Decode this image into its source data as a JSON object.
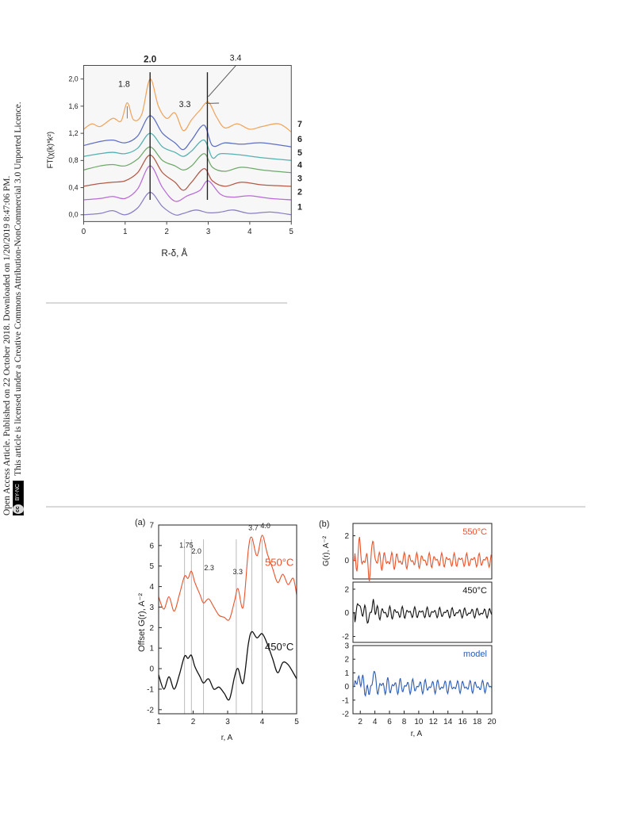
{
  "side_note": {
    "line1": "Open Access Article. Published on 22 October 2018. Downloaded on 1/20/2019 8:47:06 PM.",
    "line2": "This article is licensed under a Creative Commons Attribution-NonCommercial 3.0 Unported Licence.",
    "badge_cc": "cc",
    "badge_text": "BY-NC"
  },
  "chart_data": [
    {
      "type": "line",
      "xlabel": "R-δ, Å",
      "ylabel": "FT(χ(k)*k²)",
      "xlim": [
        0,
        5
      ],
      "ylim": [
        -0.1,
        2.2
      ],
      "x_ticks": [
        "0",
        "1",
        "2",
        "3",
        "4",
        "5"
      ],
      "y_ticks": [
        "0,0",
        "0,4",
        "0,8",
        "1,2",
        "1,6",
        "2,0"
      ],
      "annotations": [
        "1.8",
        "2.0",
        "3.3",
        "3.4"
      ],
      "vertical_lines_at": [
        1.6,
        2.98
      ],
      "series": [
        {
          "name": "1",
          "color": "#8a7fc4",
          "offset": 0.0,
          "x": [
            0,
            0.4,
            0.7,
            1.0,
            1.3,
            1.6,
            1.9,
            2.2,
            2.4,
            2.7,
            3.0,
            3.3,
            3.6,
            4.0,
            4.5,
            5.0
          ],
          "y": [
            0.0,
            0.02,
            0.06,
            0.0,
            0.1,
            0.33,
            0.12,
            0.0,
            0.02,
            0.07,
            0.03,
            0.04,
            0.07,
            0.02,
            0.04,
            0.0
          ]
        },
        {
          "name": "2",
          "color": "#b86bd6",
          "offset": 0.22,
          "x": [
            0,
            0.4,
            0.7,
            1.0,
            1.3,
            1.6,
            1.9,
            2.2,
            2.5,
            2.8,
            3.0,
            3.3,
            3.6,
            4.0,
            4.5,
            5.0
          ],
          "y": [
            0.22,
            0.24,
            0.27,
            0.24,
            0.38,
            0.72,
            0.4,
            0.2,
            0.28,
            0.36,
            0.5,
            0.3,
            0.26,
            0.28,
            0.24,
            0.22
          ]
        },
        {
          "name": "3",
          "color": "#b35a48",
          "offset": 0.42,
          "x": [
            0,
            0.4,
            0.7,
            1.0,
            1.3,
            1.6,
            1.9,
            2.2,
            2.4,
            2.6,
            2.9,
            3.1,
            3.4,
            3.8,
            4.3,
            5.0
          ],
          "y": [
            0.42,
            0.46,
            0.48,
            0.5,
            0.62,
            0.88,
            0.62,
            0.48,
            0.36,
            0.48,
            0.68,
            0.5,
            0.42,
            0.48,
            0.44,
            0.42
          ]
        },
        {
          "name": "4",
          "color": "#6fa86a",
          "offset": 0.62,
          "x": [
            0,
            0.4,
            0.7,
            1.0,
            1.3,
            1.6,
            1.9,
            2.2,
            2.4,
            2.6,
            2.9,
            3.1,
            3.4,
            3.8,
            4.3,
            5.0
          ],
          "y": [
            0.66,
            0.72,
            0.74,
            0.72,
            0.82,
            1.0,
            0.8,
            0.72,
            0.66,
            0.72,
            0.9,
            0.7,
            0.64,
            0.7,
            0.66,
            0.62
          ]
        },
        {
          "name": "5",
          "color": "#54b0b0",
          "offset": 0.82,
          "x": [
            0,
            0.4,
            0.7,
            1.0,
            1.3,
            1.6,
            1.9,
            2.2,
            2.4,
            2.6,
            2.9,
            3.1,
            3.3,
            3.8,
            4.3,
            5.0
          ],
          "y": [
            0.86,
            0.9,
            0.92,
            0.9,
            0.98,
            1.2,
            1.0,
            0.92,
            0.86,
            0.94,
            1.1,
            0.84,
            0.9,
            0.88,
            0.84,
            0.8
          ]
        },
        {
          "name": "6",
          "color": "#5d6fc4",
          "offset": 1.02,
          "x": [
            0,
            0.4,
            0.7,
            1.0,
            1.3,
            1.6,
            1.9,
            2.2,
            2.4,
            2.6,
            2.9,
            3.1,
            3.4,
            3.8,
            4.3,
            5.0
          ],
          "y": [
            1.02,
            1.08,
            1.1,
            1.06,
            1.16,
            1.46,
            1.2,
            1.06,
            0.96,
            1.1,
            1.32,
            1.02,
            1.06,
            1.04,
            1.06,
            1.0
          ]
        },
        {
          "name": "7",
          "color": "#f0a55e",
          "offset": 1.22,
          "x": [
            0,
            0.2,
            0.4,
            0.7,
            0.9,
            1.05,
            1.2,
            1.4,
            1.6,
            1.8,
            2.0,
            2.2,
            2.4,
            2.6,
            2.8,
            3.0,
            3.2,
            3.4,
            3.7,
            4.0,
            4.3,
            4.7,
            5.0
          ],
          "y": [
            1.26,
            1.34,
            1.3,
            1.42,
            1.38,
            1.65,
            1.4,
            1.48,
            2.0,
            1.6,
            1.42,
            1.5,
            1.24,
            1.4,
            1.54,
            1.66,
            1.44,
            1.28,
            1.34,
            1.26,
            1.3,
            1.34,
            1.22
          ]
        }
      ]
    },
    {
      "type": "line",
      "panel_label": "(a)",
      "xlabel": "r, A",
      "ylabel": "Offset  G(r), A⁻²",
      "xlim": [
        1,
        5
      ],
      "ylim": [
        -2.2,
        7
      ],
      "x_ticks": [
        "1",
        "2",
        "3",
        "4",
        "5"
      ],
      "y_ticks": [
        "-2",
        "-1",
        "0",
        "1",
        "2",
        "3",
        "4",
        "5",
        "6",
        "7"
      ],
      "annotations": [
        "1.75",
        "2.0",
        "2.3",
        "3.3",
        "3.7",
        "4.0"
      ],
      "vertical_lines_at": [
        1.75,
        1.95,
        2.3,
        3.25,
        3.7,
        4.0
      ],
      "series": [
        {
          "name": "550°C",
          "color": "#e8532a",
          "x": [
            1.0,
            1.15,
            1.3,
            1.45,
            1.6,
            1.75,
            1.85,
            1.95,
            2.05,
            2.2,
            2.3,
            2.45,
            2.6,
            2.75,
            2.9,
            3.05,
            3.2,
            3.3,
            3.45,
            3.6,
            3.7,
            3.85,
            4.0,
            4.15,
            4.3,
            4.45,
            4.6,
            4.75,
            4.9,
            5.0
          ],
          "y": [
            3.5,
            2.9,
            3.5,
            2.8,
            3.6,
            4.5,
            4.4,
            4.75,
            4.2,
            3.6,
            3.2,
            3.4,
            3.0,
            2.6,
            2.5,
            2.4,
            3.3,
            3.9,
            3.0,
            5.8,
            6.4,
            5.5,
            6.5,
            5.6,
            4.9,
            4.2,
            4.6,
            4.1,
            4.4,
            3.6
          ]
        },
        {
          "name": "450°C",
          "color": "#111111",
          "x": [
            1.0,
            1.15,
            1.3,
            1.45,
            1.6,
            1.75,
            1.85,
            1.95,
            2.05,
            2.2,
            2.3,
            2.45,
            2.6,
            2.75,
            2.9,
            3.05,
            3.2,
            3.3,
            3.45,
            3.6,
            3.7,
            3.85,
            4.0,
            4.15,
            4.3,
            4.45,
            4.6,
            4.75,
            4.9,
            5.0
          ],
          "y": [
            -0.3,
            -1.0,
            -0.4,
            -1.0,
            -0.3,
            0.6,
            0.5,
            0.65,
            0.1,
            -0.4,
            -0.7,
            -0.5,
            -1.0,
            -0.9,
            -1.2,
            -1.5,
            -0.4,
            0.0,
            -0.7,
            1.2,
            1.8,
            1.5,
            1.7,
            1.2,
            0.5,
            -0.2,
            0.3,
            0.2,
            -0.2,
            -0.5
          ]
        }
      ]
    },
    {
      "type": "line",
      "panel_label": "(b)",
      "xlabel": "r, A",
      "ylabel": "G(r), A⁻²",
      "xlim": [
        1,
        20
      ],
      "x_ticks": [
        "2",
        "4",
        "6",
        "8",
        "10",
        "12",
        "14",
        "16",
        "18",
        "20"
      ],
      "subpanels": [
        {
          "name": "550°C",
          "color": "#e8532a",
          "ylim": [
            -1.5,
            3
          ],
          "y_ticks": [
            "2",
            "0"
          ],
          "amplitude": 1.0
        },
        {
          "name": "450°C",
          "color": "#111111",
          "ylim": [
            -2.5,
            2.6
          ],
          "y_ticks": [
            "2",
            "0",
            "-2"
          ],
          "amplitude": 0.75
        },
        {
          "name": "model",
          "color": "#2b5bb5",
          "ylim": [
            -2,
            3
          ],
          "y_ticks": [
            "3",
            "2",
            "1",
            "0",
            "-1",
            "-2"
          ],
          "amplitude": 0.85
        }
      ]
    }
  ]
}
